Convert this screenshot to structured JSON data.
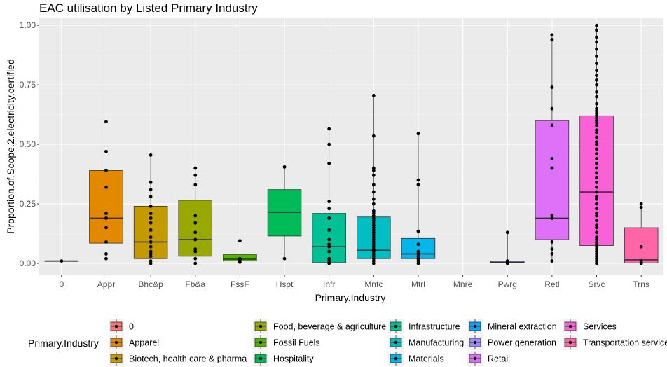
{
  "chart_data": {
    "type": "boxplot",
    "title": "EAC utilisation by Listed Primary Industry",
    "xlabel": "Primary.Industry",
    "ylabel": "Proportion.of.Scope.2.electricity.certified",
    "ylim": [
      -0.05,
      1.03
    ],
    "yticks": [
      0.0,
      0.25,
      0.5,
      0.75,
      1.0
    ],
    "ytick_labels": [
      "0.00",
      "0.25",
      "0.50",
      "0.75",
      "1.00"
    ],
    "grid": true,
    "legend": {
      "title": "Primary.Industry",
      "placement": "bottom"
    },
    "categories": [
      {
        "code": "0",
        "name": "0",
        "color": "#F8766D",
        "box": {
          "lower": 0.01,
          "q1": 0.01,
          "median": 0.01,
          "q3": 0.01,
          "upper": 0.01
        },
        "points": [
          0.01
        ]
      },
      {
        "code": "Appr",
        "name": "Apparel",
        "color": "#E38900",
        "box": {
          "lower": 0.02,
          "q1": 0.085,
          "median": 0.19,
          "q3": 0.39,
          "upper": 0.595
        },
        "points": [
          0.595,
          0.47,
          0.39,
          0.32,
          0.21,
          0.19,
          0.15,
          0.09,
          0.04,
          0.02
        ]
      },
      {
        "code": "Bhc&p",
        "name": "Biotech, health care & pharma",
        "color": "#C49A00",
        "box": {
          "lower": 0.0,
          "q1": 0.02,
          "median": 0.09,
          "q3": 0.24,
          "upper": 0.455
        },
        "points": [
          0.455,
          0.34,
          0.31,
          0.28,
          0.24,
          0.21,
          0.19,
          0.17,
          0.14,
          0.11,
          0.09,
          0.07,
          0.05,
          0.04,
          0.03,
          0.01,
          0.0
        ]
      },
      {
        "code": "Fb&a",
        "name": "Food, beverage & agriculture",
        "color": "#99A800",
        "box": {
          "lower": 0.0,
          "q1": 0.03,
          "median": 0.1,
          "q3": 0.265,
          "upper": 0.4
        },
        "points": [
          0.4,
          0.37,
          0.33,
          0.2,
          0.17,
          0.13,
          0.1,
          0.06,
          0.05,
          0.02,
          0.0
        ]
      },
      {
        "code": "FssF",
        "name": "Fossil Fuels",
        "color": "#53B400",
        "box": {
          "lower": 0.005,
          "q1": 0.01,
          "median": 0.018,
          "q3": 0.038,
          "upper": 0.095
        },
        "points": [
          0.095,
          0.02,
          0.015,
          0.01,
          0.005
        ]
      },
      {
        "code": "Hspt",
        "name": "Hospitality",
        "color": "#00BC56",
        "box": {
          "lower": 0.02,
          "q1": 0.115,
          "median": 0.215,
          "q3": 0.31,
          "upper": 0.405
        },
        "points": [
          0.405,
          0.02
        ]
      },
      {
        "code": "Infr",
        "name": "Infrastructure",
        "color": "#00C094",
        "box": {
          "lower": 0.0,
          "q1": 0.003,
          "median": 0.07,
          "q3": 0.21,
          "upper": 0.565
        },
        "points": [
          0.565,
          0.5,
          0.42,
          0.26,
          0.23,
          0.19,
          0.14,
          0.1,
          0.08,
          0.07,
          0.05,
          0.02,
          0.01,
          0.0
        ]
      },
      {
        "code": "Mnfc",
        "name": "Manufacturing",
        "color": "#00BFC4",
        "box": {
          "lower": 0.0,
          "q1": 0.02,
          "median": 0.055,
          "q3": 0.195,
          "upper": 0.705
        },
        "points": [
          0.705,
          0.535,
          0.4,
          0.39,
          0.37,
          0.33,
          0.3,
          0.27,
          0.25,
          0.22,
          0.21,
          0.2,
          0.19,
          0.18,
          0.17,
          0.16,
          0.15,
          0.14,
          0.13,
          0.12,
          0.11,
          0.1,
          0.09,
          0.08,
          0.07,
          0.06,
          0.055,
          0.05,
          0.04,
          0.03,
          0.02,
          0.01,
          0.0
        ]
      },
      {
        "code": "Mtrl",
        "name": "Materials",
        "color": "#00B6EB",
        "box": {
          "lower": 0.0,
          "q1": 0.02,
          "median": 0.04,
          "q3": 0.105,
          "upper": 0.545
        },
        "points": [
          0.545,
          0.35,
          0.33,
          0.135,
          0.08,
          0.05,
          0.04,
          0.03,
          0.02,
          0.01,
          0.0
        ]
      },
      {
        "code": "Mnre",
        "name": "Mineral extraction",
        "color": "#06A4FF",
        "box": null,
        "points": []
      },
      {
        "code": "Pwrg",
        "name": "Power generation",
        "color": "#A58AFF",
        "box": {
          "lower": 0.0,
          "q1": 0.002,
          "median": 0.005,
          "q3": 0.01,
          "upper": 0.13
        },
        "points": [
          0.13,
          0.01,
          0.005,
          0.0
        ]
      },
      {
        "code": "Retl",
        "name": "Retail",
        "color": "#DF70F8",
        "box": {
          "lower": 0.01,
          "q1": 0.1,
          "median": 0.19,
          "q3": 0.6,
          "upper": 0.96
        },
        "points": [
          0.96,
          0.94,
          0.74,
          0.65,
          0.58,
          0.44,
          0.4,
          0.2,
          0.19,
          0.09,
          0.06,
          0.04,
          0.01
        ]
      },
      {
        "code": "Srvc",
        "name": "Services",
        "color": "#FB61D7",
        "box": {
          "lower": 0.0,
          "q1": 0.075,
          "median": 0.3,
          "q3": 0.62,
          "upper": 1.0
        },
        "points": [
          1.0,
          0.98,
          0.95,
          0.93,
          0.9,
          0.87,
          0.84,
          0.81,
          0.79,
          0.77,
          0.75,
          0.72,
          0.7,
          0.67,
          0.65,
          0.64,
          0.63,
          0.62,
          0.61,
          0.6,
          0.59,
          0.58,
          0.56,
          0.55,
          0.53,
          0.51,
          0.5,
          0.48,
          0.46,
          0.44,
          0.42,
          0.4,
          0.38,
          0.36,
          0.34,
          0.32,
          0.3,
          0.28,
          0.27,
          0.25,
          0.23,
          0.21,
          0.2,
          0.18,
          0.16,
          0.15,
          0.13,
          0.11,
          0.1,
          0.09,
          0.08,
          0.07,
          0.06,
          0.05,
          0.04,
          0.03,
          0.02,
          0.01,
          0.0
        ]
      },
      {
        "code": "Trns",
        "name": "Transportation service",
        "color": "#FF66A8",
        "box": {
          "lower": 0.0,
          "q1": 0.002,
          "median": 0.015,
          "q3": 0.15,
          "upper": 0.25
        },
        "points": [
          0.25,
          0.235,
          0.07,
          0.01,
          0.005,
          0.0
        ]
      }
    ]
  }
}
